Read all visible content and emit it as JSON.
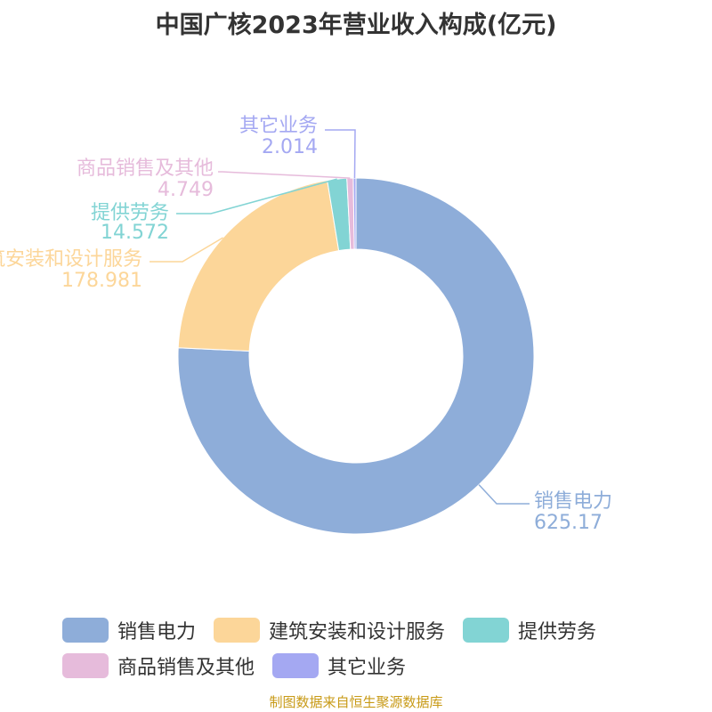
{
  "title": "中国广核2023年营业收入构成(亿元)",
  "source": "制图数据来自恒生聚源数据库",
  "chart_data": {
    "type": "pie",
    "donut": true,
    "title": "中国广核2023年营业收入构成(亿元)",
    "legend_position": "bottom",
    "categories": [
      "销售电力",
      "建筑安装和设计服务",
      "提供劳务",
      "商品销售及其他",
      "其它业务"
    ],
    "values": [
      625.17,
      178.981,
      14.572,
      4.749,
      2.014
    ],
    "value_labels": [
      "625.17",
      "178.981",
      "14.572",
      "4.749",
      "2.014"
    ],
    "colors": [
      "#8eadd9",
      "#fcd699",
      "#82d4d4",
      "#e6bbdb",
      "#a4a8f2"
    ]
  }
}
